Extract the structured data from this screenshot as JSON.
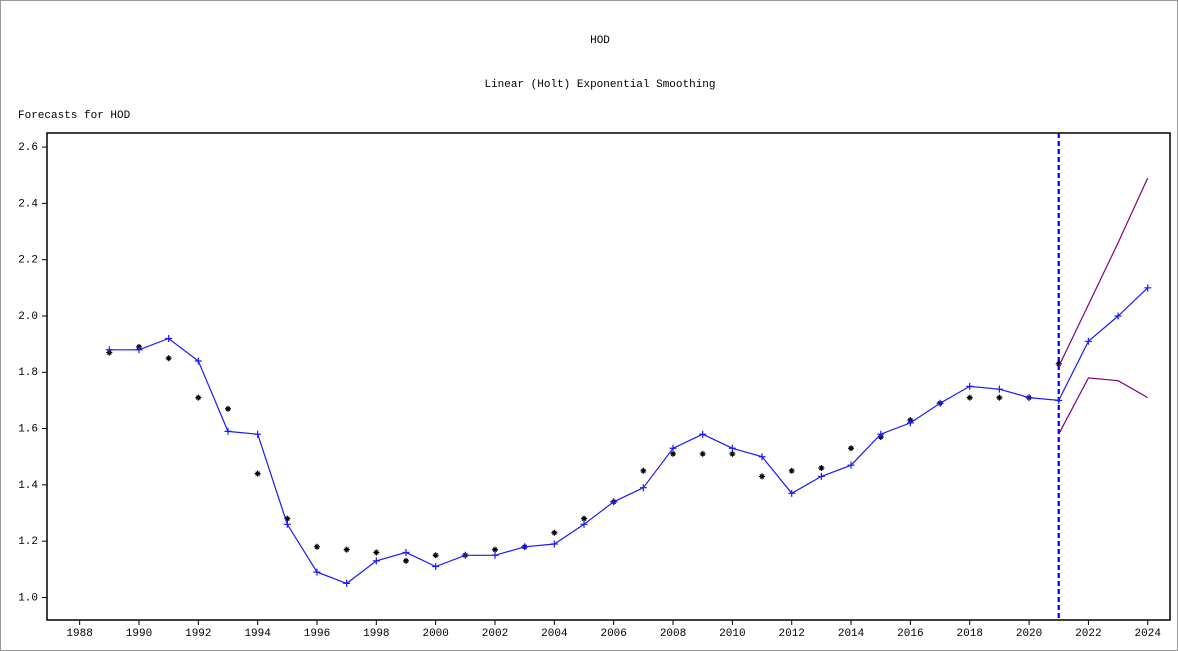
{
  "chart_data": {
    "type": "line",
    "title": "HOD",
    "subtitle": "Linear (Holt) Exponential Smoothing",
    "ylabel": "Forecasts for HOD",
    "x": [
      1989,
      1990,
      1991,
      1992,
      1993,
      1994,
      1995,
      1996,
      1997,
      1998,
      1999,
      2000,
      2001,
      2002,
      2003,
      2004,
      2005,
      2006,
      2007,
      2008,
      2009,
      2010,
      2011,
      2012,
      2013,
      2014,
      2015,
      2016,
      2017,
      2018,
      2019,
      2020,
      2021,
      2022,
      2023,
      2024
    ],
    "series": [
      {
        "color": "#000000",
        "marker": "star",
        "line": false,
        "values": [
          1.87,
          1.89,
          1.85,
          1.71,
          1.67,
          1.44,
          1.28,
          1.18,
          1.17,
          1.16,
          1.13,
          1.15,
          1.15,
          1.17,
          1.18,
          1.23,
          1.28,
          1.34,
          1.45,
          1.51,
          1.51,
          1.51,
          1.43,
          1.45,
          1.46,
          1.53,
          1.57,
          1.63,
          1.69,
          1.71,
          1.71,
          1.71,
          1.83,
          null,
          null,
          null
        ]
      },
      {
        "color": "#1a1aff",
        "marker": "plus",
        "line": true,
        "values": [
          1.88,
          1.88,
          1.92,
          1.84,
          1.59,
          1.58,
          1.26,
          1.09,
          1.05,
          1.13,
          1.16,
          1.11,
          1.15,
          1.15,
          1.18,
          1.19,
          1.26,
          1.34,
          1.39,
          1.53,
          1.58,
          1.53,
          1.5,
          1.37,
          1.43,
          1.47,
          1.58,
          1.62,
          1.69,
          1.75,
          1.74,
          1.71,
          1.7,
          1.91,
          2.0,
          2.1
        ]
      },
      {
        "color": "#800080",
        "marker": "none",
        "line": true,
        "values": [
          null,
          null,
          null,
          null,
          null,
          null,
          null,
          null,
          null,
          null,
          null,
          null,
          null,
          null,
          null,
          null,
          null,
          null,
          null,
          null,
          null,
          null,
          null,
          null,
          null,
          null,
          null,
          null,
          null,
          null,
          null,
          null,
          1.82,
          2.04,
          2.26,
          2.49
        ]
      },
      {
        "color": "#800080",
        "marker": "none",
        "line": true,
        "values": [
          null,
          null,
          null,
          null,
          null,
          null,
          null,
          null,
          null,
          null,
          null,
          null,
          null,
          null,
          null,
          null,
          null,
          null,
          null,
          null,
          null,
          null,
          null,
          null,
          null,
          null,
          null,
          null,
          null,
          null,
          null,
          null,
          1.58,
          1.78,
          1.77,
          1.71
        ]
      }
    ],
    "reference_x": 2021,
    "reference_color": "#0000ee",
    "xlim": [
      1986.9,
      2024.75
    ],
    "xticks": [
      1988,
      1990,
      1992,
      1994,
      1996,
      1998,
      2000,
      2002,
      2004,
      2006,
      2008,
      2010,
      2012,
      2014,
      2016,
      2018,
      2020,
      2022,
      2024
    ],
    "ylim": [
      0.92,
      2.65
    ],
    "yticks": [
      {
        "value": 1.0,
        "label": "1.0"
      },
      1.2,
      1.4,
      1.6,
      1.8,
      {
        "value": 2.0,
        "label": "2.0"
      },
      2.2,
      2.4,
      2.6
    ],
    "grid": false
  }
}
